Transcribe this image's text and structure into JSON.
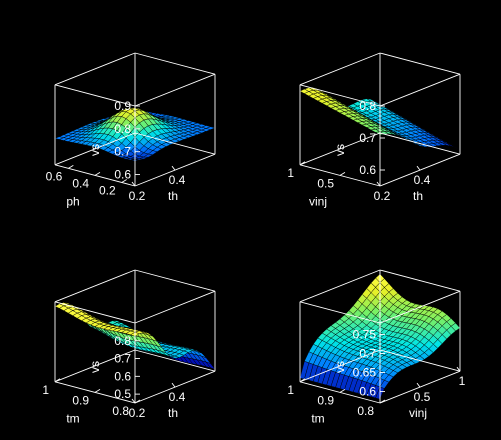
{
  "figure": {
    "background": "#000000",
    "foreground": "#ffffff",
    "colormap": "jet-like (blue → cyan → green → yellow)"
  },
  "chart_data": [
    {
      "type": "surface",
      "title": "",
      "xlabel": "th",
      "ylabel": "ph",
      "zlabel": "vs",
      "xlim": [
        0.2,
        0.6
      ],
      "ylim": [
        0.1,
        0.7
      ],
      "zlim": [
        0.55,
        0.9
      ],
      "xticks": [
        0.2,
        0.4
      ],
      "xtick_labels": [
        "0.2",
        "0.4"
      ],
      "yticks": [
        0.2,
        0.4,
        0.6
      ],
      "ytick_labels": [
        "0.2",
        "0.4",
        "0.6"
      ],
      "zticks": [
        0.6,
        0.7,
        0.8,
        0.9
      ],
      "ztick_labels": [
        "0.6",
        "0.7",
        "0.8",
        "0.9"
      ],
      "surface": {
        "shape": "central_bump",
        "grid": 18,
        "base": 0.68,
        "peak": 0.785,
        "edge_dips": 0.65,
        "z_range": [
          0.63,
          0.79
        ]
      },
      "grid": false
    },
    {
      "type": "surface",
      "title": "",
      "xlabel": "th",
      "ylabel": "vinj",
      "zlabel": "vs",
      "xlim": [
        0.2,
        0.6
      ],
      "ylim": [
        0,
        1
      ],
      "zlim": [
        0.55,
        0.8
      ],
      "xticks": [
        0.2,
        0.4
      ],
      "xtick_labels": [
        "0.2",
        "0.4"
      ],
      "yticks": [
        0.5,
        1
      ],
      "ytick_labels": [
        "0.5",
        "1"
      ],
      "zticks": [
        0.6,
        0.7,
        0.8
      ],
      "ztick_labels": [
        "0.6",
        "0.7",
        "0.8"
      ],
      "surface": {
        "shape": "decreasing_ridge",
        "grid": 18,
        "z_range": [
          0.57,
          0.79
        ]
      },
      "grid": false
    },
    {
      "type": "surface",
      "title": "",
      "xlabel": "th",
      "ylabel": "tm",
      "zlabel": "vs",
      "xlim": [
        0.2,
        0.6
      ],
      "ylim": [
        0.8,
        1
      ],
      "zlim": [
        0.45,
        0.9
      ],
      "xticks": [
        0.2,
        0.4
      ],
      "xtick_labels": [
        "0.2",
        "0.4"
      ],
      "yticks": [
        0.8,
        0.9,
        1
      ],
      "ytick_labels": [
        "0.8",
        "0.9",
        "1"
      ],
      "zticks": [
        0.5,
        0.6,
        0.7,
        0.8
      ],
      "ztick_labels": [
        "0.5",
        "0.6",
        "0.7",
        "0.8"
      ],
      "surface": {
        "shape": "decreasing_wave",
        "grid": 18,
        "z_range": [
          0.47,
          0.85
        ]
      },
      "grid": false
    },
    {
      "type": "surface",
      "title": "",
      "xlabel": "vinj",
      "ylabel": "tm",
      "zlabel": "vs",
      "xlim": [
        0,
        1
      ],
      "ylim": [
        0.8,
        1
      ],
      "zlim": [
        0.57,
        0.78
      ],
      "xticks": [
        0.5,
        1
      ],
      "xtick_labels": [
        "0.5",
        "1"
      ],
      "yticks": [
        0.8,
        0.9,
        1
      ],
      "ytick_labels": [
        "0.8",
        "0.9",
        "1"
      ],
      "zticks": [
        0.6,
        0.65,
        0.7,
        0.75
      ],
      "ztick_labels": [
        "0.6",
        "0.65",
        "0.7",
        "0.75"
      ],
      "surface": {
        "shape": "rising_with_vinj",
        "grid": 18,
        "z_range": [
          0.58,
          0.76
        ]
      },
      "grid": false
    }
  ]
}
